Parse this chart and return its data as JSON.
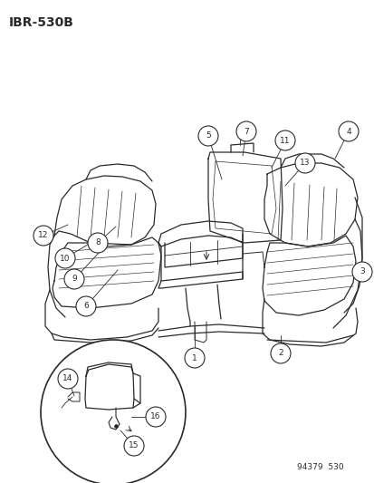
{
  "title": "IBR-530B",
  "footer": "94379  530",
  "bg_color": "#ffffff",
  "line_color": "#2a2a2a",
  "fig_width": 4.14,
  "fig_height": 5.33,
  "dpi": 100
}
